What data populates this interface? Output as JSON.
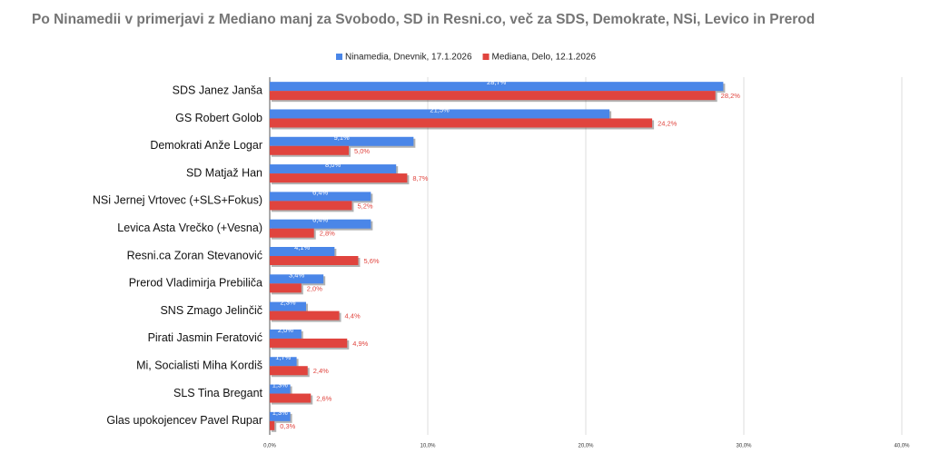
{
  "chart_data": {
    "type": "bar",
    "orientation": "horizontal",
    "title": "Po Ninamedii v primerjavi z Mediano manj za Svobodo, SD in Resni.co, več za SDS, Demokrate, NSi, Levico in Prerod",
    "categories": [
      "SDS Janez Janša",
      "GS Robert Golob",
      "Demokrati Anže Logar",
      "SD Matjaž Han",
      "NSi Jernej Vrtovec (+SLS+Fokus)",
      "Levica Asta Vrečko (+Vesna)",
      "Resni.ca Zoran Stevanović",
      "Prerod Vladimirja Prebiliča",
      "SNS Zmago Jelinčič",
      "Pirati Jasmin Feratović",
      "Mi, Socialisti Miha Kordiš",
      "SLS Tina Bregant",
      "Glas upokojencev Pavel Rupar"
    ],
    "series": [
      {
        "name": "Ninamedia, Dnevnik, 17.1.2026",
        "color": "#4a86e8",
        "values": [
          28.7,
          21.5,
          9.1,
          8.0,
          6.4,
          6.4,
          4.1,
          3.4,
          2.3,
          2.0,
          1.7,
          1.3,
          1.3
        ],
        "value_labels": [
          "28,7%",
          "21,5%",
          "9,1%",
          "8,0%",
          "6,4%",
          "6,4%",
          "4,1%",
          "3,4%",
          "2,3%",
          "2,0%",
          "1,7%",
          "1,3%",
          "1,3%"
        ]
      },
      {
        "name": "Mediana, Delo, 12.1.2026",
        "color": "#e0443e",
        "values": [
          28.2,
          24.2,
          5.0,
          8.7,
          5.2,
          2.8,
          5.6,
          2.0,
          4.4,
          4.9,
          2.4,
          2.6,
          0.3
        ],
        "value_labels": [
          "28,2%",
          "24,2%",
          "5,0%",
          "8,7%",
          "5,2%",
          "2,8%",
          "5,6%",
          "2,0%",
          "4,4%",
          "4,9%",
          "2,4%",
          "2,6%",
          "0,3%"
        ]
      }
    ],
    "xlim": [
      0,
      40
    ],
    "xticks": [
      {
        "value": 0,
        "label": "0,0%"
      },
      {
        "value": 10,
        "label": "10,0%"
      },
      {
        "value": 20,
        "label": "20,0%"
      },
      {
        "value": 30,
        "label": "30,0%"
      },
      {
        "value": 40,
        "label": "40,0%"
      }
    ],
    "grid": true,
    "legend": "top"
  }
}
